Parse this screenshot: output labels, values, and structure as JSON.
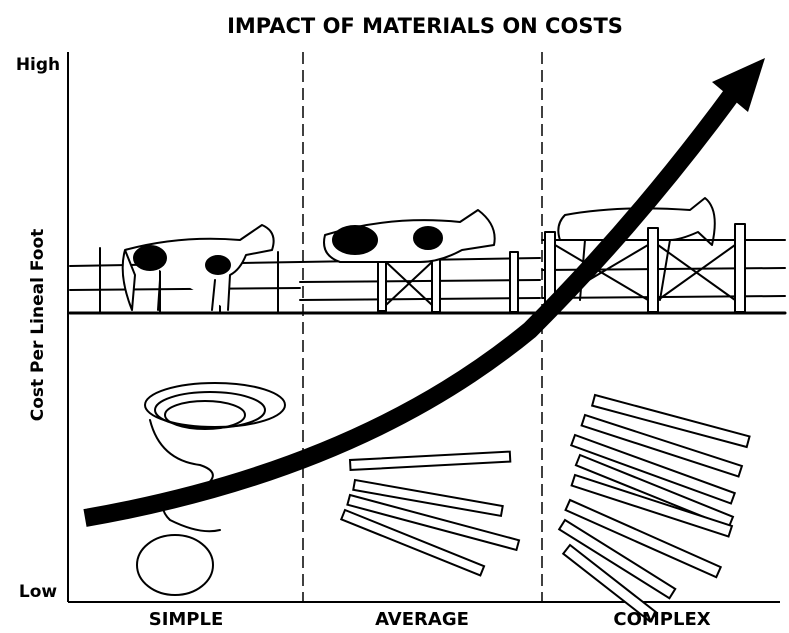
{
  "title": "IMPACT OF MATERIALS ON COSTS",
  "y_axis": {
    "label": "Cost Per Lineal Foot",
    "high": "High",
    "low": "Low"
  },
  "columns": [
    "SIMPLE",
    "AVERAGE",
    "COMPLEX"
  ]
}
